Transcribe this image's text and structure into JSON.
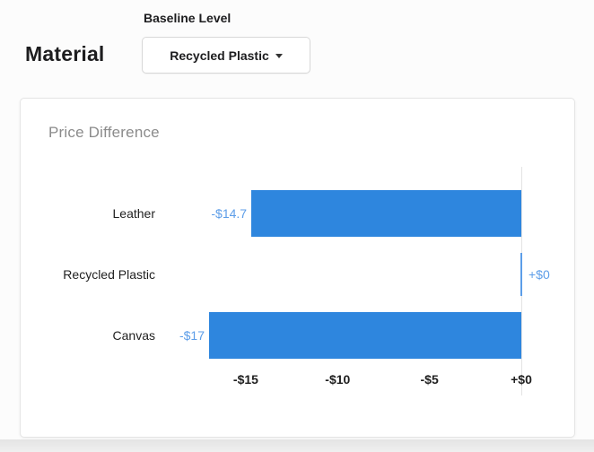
{
  "page": {
    "heading": "Material",
    "baseline_control": {
      "label": "Baseline Level",
      "selected_value": "Recycled Plastic"
    }
  },
  "card": {
    "title": "Price Difference"
  },
  "chart_data": {
    "type": "bar",
    "orientation": "horizontal",
    "title": "Price Difference",
    "categories": [
      "Leather",
      "Recycled Plastic",
      "Canvas"
    ],
    "values": [
      -14.7,
      0,
      -17
    ],
    "value_labels": [
      "-$14.7",
      "+$0",
      "-$17"
    ],
    "x_ticks": [
      {
        "value": -15,
        "label": "-$15"
      },
      {
        "value": -10,
        "label": "-$10"
      },
      {
        "value": -5,
        "label": "-$5"
      },
      {
        "value": 0,
        "label": "+$0"
      }
    ],
    "xlim": [
      -17,
      0
    ],
    "grid": false,
    "legend": false,
    "colors": {
      "bar": "#2E86DE",
      "zero_bar": "#5C9DE8",
      "value_label": "#5C9DE8",
      "axis_line": "#E3E3E3",
      "category_label": "#1F1F1F",
      "tick_label": "#1F1F1F"
    }
  }
}
